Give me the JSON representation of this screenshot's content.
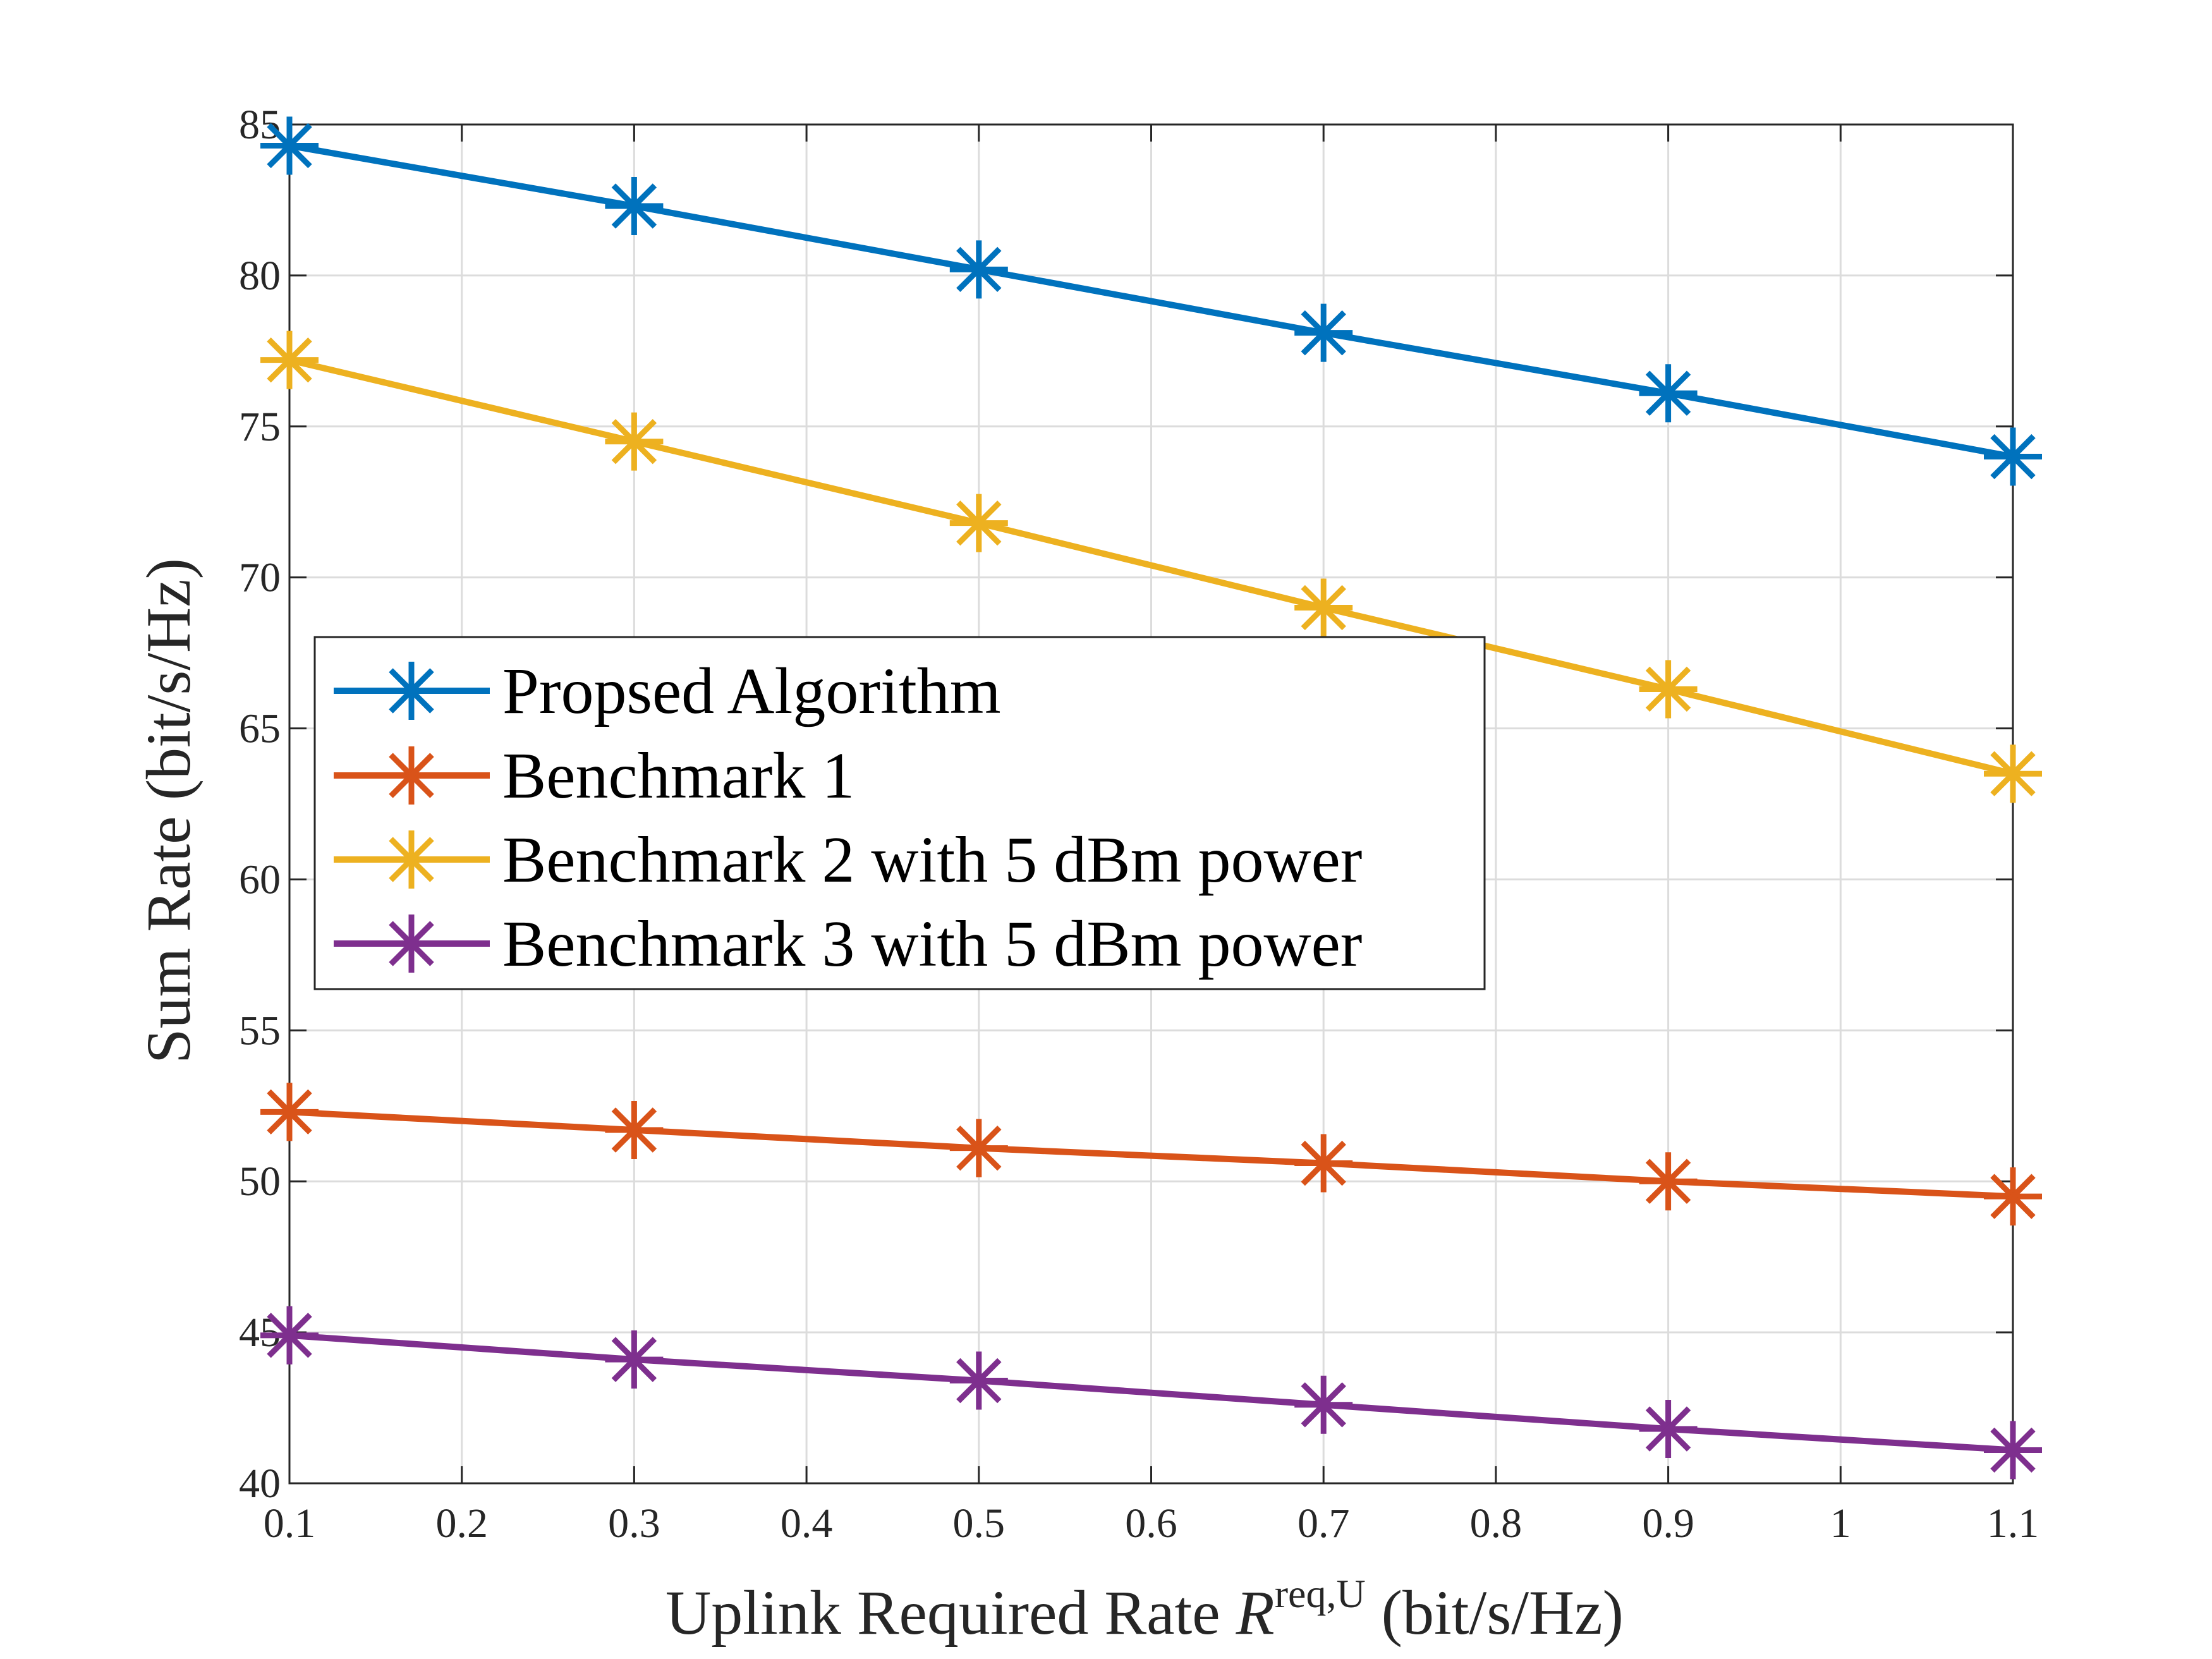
{
  "chart_data": {
    "type": "line",
    "title": "",
    "xlabel": {
      "prefix": "Uplink Required Rate ",
      "symbol": "R",
      "superscript": "req,U",
      "suffix": " (bit/s/Hz)"
    },
    "ylabel": "Sum Rate (bit/s/Hz)",
    "xlim": [
      0.1,
      1.1
    ],
    "ylim": [
      40,
      85
    ],
    "xticks": [
      "0.1",
      "0.2",
      "0.3",
      "0.4",
      "0.5",
      "0.6",
      "0.7",
      "0.8",
      "0.9",
      "1",
      "1.1"
    ],
    "yticks": [
      "40",
      "45",
      "50",
      "55",
      "60",
      "65",
      "70",
      "75",
      "80",
      "85"
    ],
    "grid": true,
    "legend_position": "center-left",
    "x": [
      0.1,
      0.3,
      0.5,
      0.7,
      0.9,
      1.1
    ],
    "series": [
      {
        "name": "Propsed Algorithm",
        "color": "#0072BD",
        "marker": "asterisk",
        "values": [
          84.3,
          82.3,
          80.2,
          78.1,
          76.1,
          74.0
        ]
      },
      {
        "name": "Benchmark 1",
        "color": "#D95319",
        "marker": "asterisk",
        "values": [
          52.3,
          51.7,
          51.1,
          50.6,
          50.0,
          49.5
        ]
      },
      {
        "name": "Benchmark 2 with 5 dBm power",
        "color": "#EDB120",
        "marker": "asterisk",
        "values": [
          77.2,
          74.5,
          71.8,
          69.0,
          66.3,
          63.5
        ]
      },
      {
        "name": "Benchmark 3 with 5 dBm power",
        "color": "#7E2F8E",
        "marker": "asterisk",
        "values": [
          44.9,
          44.1,
          43.4,
          42.6,
          41.8,
          41.1
        ]
      }
    ]
  }
}
